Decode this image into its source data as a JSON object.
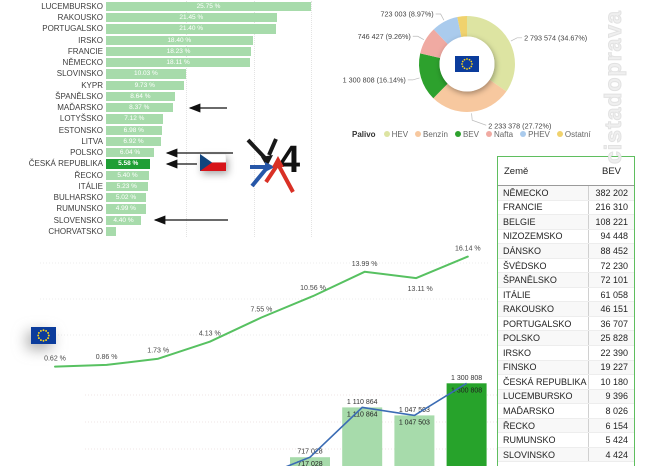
{
  "watermark": "cistadoprava",
  "chart_data": [
    {
      "id": "bev-share-by-country",
      "type": "bar",
      "orientation": "horizontal",
      "unit": "%",
      "categories": [
        "LUCEMBURSKO",
        "RAKOUSKO",
        "PORTUGALSKO",
        "IRSKO",
        "FRANCIE",
        "NĚMECKO",
        "SLOVINSKO",
        "KYPR",
        "ŠPANĚLSKO",
        "MAĎARSKO",
        "LOTYŠSKO",
        "ESTONSKO",
        "LITVA",
        "POLSKO",
        "ČESKÁ REPUBLIKA",
        "ŘECKO",
        "ITÁLIE",
        "BULHARSKO",
        "RUMUNSKO",
        "SLOVENSKO",
        "CHORVATSKO"
      ],
      "values": [
        25.75,
        21.45,
        21.4,
        18.4,
        18.23,
        18.11,
        10.03,
        9.73,
        8.64,
        8.37,
        7.12,
        6.98,
        6.92,
        6.04,
        5.58,
        5.4,
        5.23,
        5.02,
        4.99,
        4.4,
        1.3
      ],
      "data_labels": [
        "25.75 %",
        "21.45 %",
        "21.40 %",
        "18.40 %",
        "18.23 %",
        "18.11 %",
        "10.03 %",
        "9.73 %",
        "8.64 %",
        "8.37 %",
        "7.12 %",
        "6.98 %",
        "6.92 %",
        "6.04 %",
        "5.58 %",
        "5.40 %",
        "5.23 %",
        "5.02 %",
        "4.99 %",
        "4.40 %",
        ""
      ],
      "highlight_index": 14,
      "xlim": [
        0,
        27
      ],
      "colors": {
        "bar": "#a7dbab",
        "highlight": "#1f9e35",
        "label_text": "#ffffff"
      }
    },
    {
      "id": "fuel-mix-donut",
      "type": "pie",
      "legend_title": "Palivo",
      "slices": [
        {
          "name": "HEV",
          "pct": 34.67,
          "label": "2 793 574 (34.67%)",
          "color": "#dde4a2"
        },
        {
          "name": "Benzín",
          "pct": 27.72,
          "label": "2 233 378 (27.72%)",
          "color": "#f7c89f"
        },
        {
          "name": "BEV",
          "pct": 16.14,
          "label": "1 300 808 (16.14%)",
          "color": "#2da12d"
        },
        {
          "name": "Nafta",
          "pct": 9.26,
          "label": "746 427 (9.26%)",
          "color": "#f0aaa2"
        },
        {
          "name": "PHEV",
          "pct": 8.97,
          "label": "723 003 (8.97%)",
          "color": "#aacbed"
        },
        {
          "name": "Ostatní",
          "pct": 3.24,
          "label": "",
          "color": "#f0d26d"
        }
      ],
      "center_icon": "eu-flag"
    },
    {
      "id": "bev-share-trend",
      "type": "line",
      "values": [
        0.62,
        0.86,
        1.73,
        4.13,
        7.55,
        10.56,
        13.99,
        13.11,
        16.14
      ],
      "data_labels": [
        "0.62 %",
        "0.86 %",
        "1.73 %",
        "4.13 %",
        "7.55 %",
        "10.56 %",
        "13.99 %",
        "13.11 %",
        "16.14 %"
      ],
      "color": "#57c161"
    },
    {
      "id": "bev-stock-columns",
      "type": "bar",
      "values": [
        717028,
        1110864,
        1047503,
        1300808
      ],
      "data_labels": [
        "717 028",
        "1 110 864",
        "1 047 503",
        "1 300 808"
      ],
      "highlight_index": 3,
      "trend_prev_value": 553000,
      "colors": {
        "bar": "#a7dbab",
        "highlight": "#27a32b",
        "trend_line": "#3b6cb4"
      }
    },
    {
      "id": "bev-by-country-table",
      "type": "table",
      "columns": [
        "Země",
        "BEV"
      ],
      "rows": [
        [
          "NĚMECKO",
          "382 202"
        ],
        [
          "FRANCIE",
          "216 310"
        ],
        [
          "BELGIE",
          "108 221"
        ],
        [
          "NIZOZEMSKO",
          "94 448"
        ],
        [
          "DÁNSKO",
          "88 452"
        ],
        [
          "ŠVÉDSKO",
          "72 230"
        ],
        [
          "ŠPANĚLSKO",
          "72 101"
        ],
        [
          "ITÁLIE",
          "61 058"
        ],
        [
          "RAKOUSKO",
          "46 151"
        ],
        [
          "PORTUGALSKO",
          "36 707"
        ],
        [
          "POLSKO",
          "25 828"
        ],
        [
          "IRSKO",
          "22 390"
        ],
        [
          "FINSKO",
          "19 227"
        ],
        [
          "ČESKÁ REPUBLIKA",
          "10 180"
        ],
        [
          "LUCEMBURSKO",
          "9 396"
        ],
        [
          "MAĎARSKO",
          "8 026"
        ],
        [
          "ŘECKO",
          "6 154"
        ],
        [
          "RUMUNSKO",
          "5 424"
        ],
        [
          "SLOVINSKO",
          "4 424"
        ]
      ]
    }
  ],
  "annotations": {
    "v4_text": "4",
    "arrows": [
      {
        "target": "MAĎARSKO",
        "y": 108,
        "x_tip": 183,
        "x_tail": 227
      },
      {
        "target": "POLSKO",
        "y": 153,
        "x_tip": 160,
        "x_tail": 233
      },
      {
        "target": "ČESKÁ REPUBLIKA",
        "y": 164,
        "x_tip": 160,
        "x_tail": 197
      },
      {
        "target": "SLOVENSKO",
        "y": 220,
        "x_tip": 148,
        "x_tail": 228
      }
    ]
  }
}
